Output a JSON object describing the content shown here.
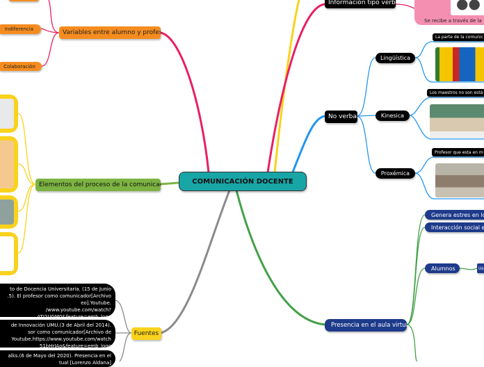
{
  "central": {
    "title": "COMUNICACIÓN DOCENTE"
  },
  "colors": {
    "central": "#17a5a6",
    "verbal": "#e91e63",
    "nonverbal": "#2196f3",
    "virtual": "#43a047",
    "sources": "#8a8a8a",
    "elements": "#f9d21c",
    "variables": "#e91e63"
  },
  "verbal": {
    "label": "Información tipo verbal",
    "note": "Se recibe a través de la",
    "icon": "people-group-icon"
  },
  "nonverbal": {
    "label": "No verbal",
    "items": [
      {
        "label": "Lingüística",
        "caption": "La parte de la comunic"
      },
      {
        "label": "Kinesica",
        "caption": "Los maestros no son está"
      },
      {
        "label": "Proxémica",
        "caption": "Profesor que esta en m"
      }
    ]
  },
  "virtual": {
    "label": "Presencia en el aula virtual",
    "items": [
      "Genera estres en los",
      "Interacción social ent",
      "Alumnos"
    ],
    "sub": "Us"
  },
  "variables": {
    "label": "Variables entre alumno y profesor",
    "items": [
      "Indiferencia",
      "Colaboración"
    ]
  },
  "elements": {
    "label": "Elementos del proceso de la comunicación"
  },
  "sources": {
    "label": "Fuentes",
    "items": [
      "to de Docencia Universitaria. (15 de Junio\n.5). El profesor como comunicador[Archivo\neo].Youtube.\n/www.youtube.com/watch?\nATJ2UGM0&feature=emb_logo",
      "de Innovación UMU.(3 de Abril del 2014).\nsor como comunicador[Archivo de\nYoutube.https://www.youtube.com/watch\n51bHrIAo&feature=emb_logo",
      "alks.(6 de Mayo del 2020). Presencia en el\ntual [Lorenzo Aldana]"
    ]
  }
}
